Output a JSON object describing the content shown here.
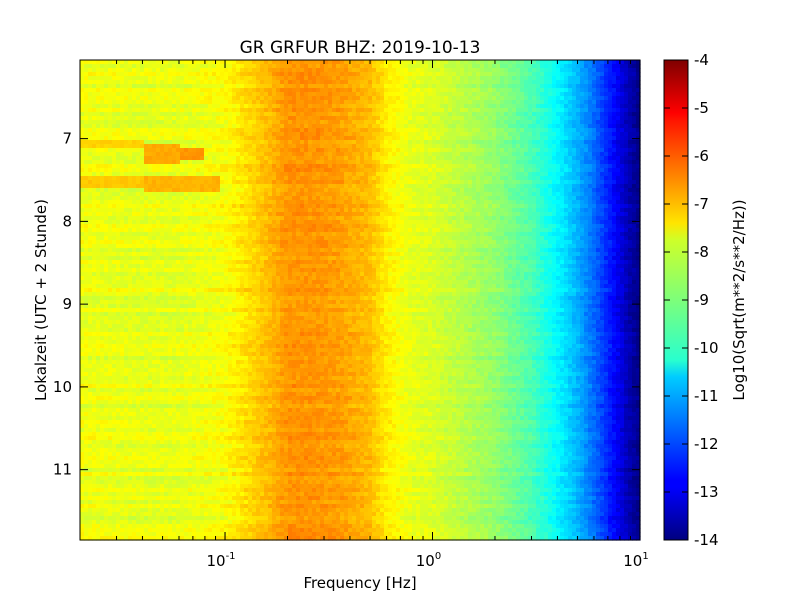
{
  "chart_data": {
    "type": "heatmap",
    "title": "GR GRFUR BHZ: 2019-10-13",
    "xlabel": "Frequency [Hz]",
    "ylabel": "Lokalzeit (UTC + 2 Stunde)",
    "x_scale": "log",
    "xlim": [
      0.02,
      10
    ],
    "ylim": [
      11.85,
      6.05
    ],
    "x_ticks": [
      {
        "value": 0.1,
        "base": "10",
        "exp": "-1"
      },
      {
        "value": 1,
        "base": "10",
        "exp": "0"
      },
      {
        "value": 10,
        "base": "10",
        "exp": "1"
      }
    ],
    "y_ticks": [
      {
        "value": 7,
        "label": "7"
      },
      {
        "value": 8,
        "label": "8"
      },
      {
        "value": 9,
        "label": "9"
      },
      {
        "value": 10,
        "label": "10"
      },
      {
        "value": 11,
        "label": "11"
      }
    ],
    "colorbar": {
      "label": "Log10(Sqrt(m**2/s**2/Hz))",
      "range": [
        -14,
        -4
      ],
      "colormap": "jet",
      "ticks": [
        "-4",
        "-5",
        "-6",
        "-7",
        "-8",
        "-9",
        "-10",
        "-11",
        "-12",
        "-13",
        "-14"
      ]
    },
    "spectrum_profile": [
      {
        "f": 0.02,
        "value": -7.9
      },
      {
        "f": 0.04,
        "value": -8.0
      },
      {
        "f": 0.06,
        "value": -8.0
      },
      {
        "f": 0.1,
        "value": -7.8
      },
      {
        "f": 0.14,
        "value": -7.3
      },
      {
        "f": 0.17,
        "value": -7.0
      },
      {
        "f": 0.2,
        "value": -6.7
      },
      {
        "f": 0.25,
        "value": -6.7
      },
      {
        "f": 0.35,
        "value": -6.8
      },
      {
        "f": 0.5,
        "value": -7.1
      },
      {
        "f": 0.6,
        "value": -7.6
      },
      {
        "f": 0.8,
        "value": -8.0
      },
      {
        "f": 1.0,
        "value": -8.1
      },
      {
        "f": 1.5,
        "value": -8.5
      },
      {
        "f": 2.0,
        "value": -8.8
      },
      {
        "f": 3.0,
        "value": -9.5
      },
      {
        "f": 4.0,
        "value": -10.3
      },
      {
        "f": 5.0,
        "value": -11.0
      },
      {
        "f": 6.0,
        "value": -11.7
      },
      {
        "f": 7.0,
        "value": -12.4
      },
      {
        "f": 8.0,
        "value": -13.0
      },
      {
        "f": 9.0,
        "value": -13.6
      },
      {
        "f": 10.0,
        "value": -13.9
      }
    ],
    "features": [
      {
        "f_range": [
          0.04,
          0.06
        ],
        "t_range": [
          7.05,
          7.3
        ],
        "value": -6.9
      },
      {
        "f_range": [
          0.06,
          0.08
        ],
        "t_range": [
          7.1,
          7.25
        ],
        "value": -6.7
      },
      {
        "f_range": [
          0.04,
          0.095
        ],
        "t_range": [
          7.45,
          7.65
        ],
        "value": -7.0
      },
      {
        "f_range": [
          0.02,
          0.04
        ],
        "t_range": [
          7.0,
          7.1
        ],
        "value": -7.3
      },
      {
        "f_range": [
          0.02,
          0.04
        ],
        "t_range": [
          7.45,
          7.6
        ],
        "value": -7.2
      }
    ]
  }
}
